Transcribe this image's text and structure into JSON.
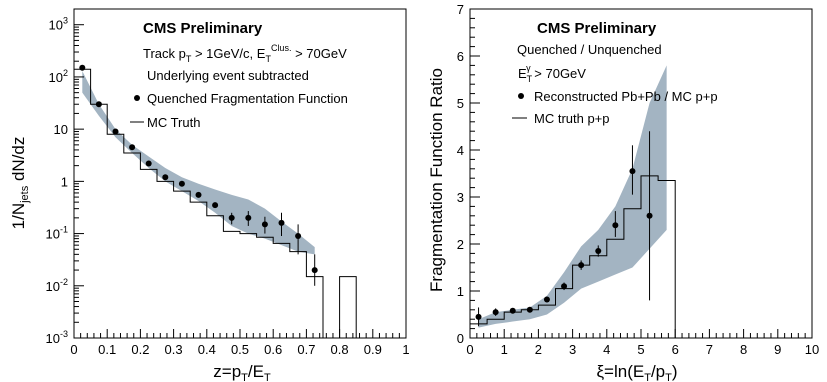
{
  "chart_data": [
    {
      "type": "line",
      "title": "CMS Preliminary",
      "xlabel": "z=p_T/E_T",
      "ylabel": "1/N_jets dN/dz",
      "yscale": "log",
      "xlim": [
        0,
        1
      ],
      "ylim": [
        0.001,
        2000
      ],
      "xticks": [
        "0",
        "0.1",
        "0.2",
        "0.3",
        "0.4",
        "0.5",
        "0.6",
        "0.7",
        "0.8",
        "0.9",
        "1"
      ],
      "yticks": [
        {
          "value": 0.001,
          "base": "10",
          "exp": "-3"
        },
        {
          "value": 0.01,
          "base": "10",
          "exp": "-2"
        },
        {
          "value": 0.1,
          "base": "10",
          "exp": "-1"
        },
        {
          "value": 1,
          "base": "1",
          "exp": ""
        },
        {
          "value": 10,
          "base": "10",
          "exp": ""
        },
        {
          "value": 100,
          "base": "10",
          "exp": "2"
        },
        {
          "value": 1000,
          "base": "10",
          "exp": "3"
        }
      ],
      "annotations": {
        "track_pre": "Track p",
        "track_sub": "T",
        "track_mid": " > 1GeV/c, E",
        "track_sub2": "T",
        "track_sup": "Clus.",
        "track_post": " > 70GeV",
        "line2": "Underlying event subtracted"
      },
      "legend": [
        {
          "marker": "circle",
          "label": "Quenched Fragmentation Function"
        },
        {
          "marker": "line",
          "label": "MC Truth"
        }
      ],
      "series": [
        {
          "name": "Quenched Fragmentation Function",
          "kind": "points",
          "x": [
            0.025,
            0.075,
            0.125,
            0.175,
            0.225,
            0.275,
            0.325,
            0.375,
            0.425,
            0.475,
            0.525,
            0.575,
            0.625,
            0.675,
            0.725
          ],
          "y": [
            150,
            30,
            9,
            4.5,
            2.2,
            1.2,
            0.9,
            0.55,
            0.35,
            0.2,
            0.2,
            0.15,
            0.16,
            0.09,
            0.02
          ],
          "yerr_low": [
            0,
            0,
            0,
            0,
            0,
            0,
            0,
            0,
            0,
            0.05,
            0.06,
            0.05,
            0.07,
            0.05,
            0.01
          ],
          "yerr_high": [
            0,
            0,
            0,
            0,
            0,
            0,
            0,
            0,
            0,
            0.05,
            0.07,
            0.06,
            0.09,
            0.06,
            0.02
          ]
        },
        {
          "name": "MC Truth",
          "kind": "histogram",
          "edges": [
            0,
            0.05,
            0.1,
            0.15,
            0.2,
            0.25,
            0.3,
            0.35,
            0.4,
            0.45,
            0.5,
            0.55,
            0.6,
            0.65,
            0.7,
            0.75,
            0.8,
            0.85
          ],
          "values": [
            140,
            30,
            8,
            3.5,
            1.7,
            1,
            0.65,
            0.4,
            0.22,
            0.11,
            0.1,
            0.085,
            0.065,
            0.045,
            0.015,
            0.001,
            0.015
          ]
        },
        {
          "name": "band",
          "kind": "band",
          "x": [
            0.025,
            0.075,
            0.125,
            0.175,
            0.225,
            0.275,
            0.325,
            0.375,
            0.425,
            0.475,
            0.525,
            0.575,
            0.625,
            0.675,
            0.725
          ],
          "low": [
            50,
            18,
            7,
            3.5,
            1.8,
            1.0,
            0.65,
            0.42,
            0.25,
            0.14,
            0.1,
            0.08,
            0.06,
            0.045,
            0.04
          ],
          "high": [
            130,
            30,
            10,
            5,
            3.0,
            1.8,
            1.2,
            0.9,
            0.7,
            0.55,
            0.45,
            0.3,
            0.17,
            0.1,
            0.055
          ]
        }
      ]
    },
    {
      "type": "line",
      "title": "CMS Preliminary",
      "xlabel": "ξ=ln(E_T/p_T)",
      "ylabel": "Fragmentation Function Ratio",
      "xlim": [
        0,
        10
      ],
      "ylim": [
        0,
        7
      ],
      "xticks": [
        "0",
        "1",
        "2",
        "3",
        "4",
        "5",
        "6",
        "7",
        "8",
        "9",
        "10"
      ],
      "yticks": [
        "0",
        "1",
        "2",
        "3",
        "4",
        "5",
        "6",
        "7"
      ],
      "annotations": {
        "line1": "Quenched / Unquenched",
        "et_pre": "E",
        "et_sub": "T",
        "et_sup": "γ",
        "et_post": " > 70GeV"
      },
      "legend": [
        {
          "marker": "circle",
          "label": "Reconstructed Pb+Pb / MC p+p"
        },
        {
          "marker": "line",
          "label": "MC truth p+p"
        }
      ],
      "series": [
        {
          "name": "Reconstructed Pb+Pb / MC p+p",
          "kind": "points",
          "x": [
            0.25,
            0.75,
            1.25,
            1.75,
            2.25,
            2.75,
            3.25,
            3.75,
            4.25,
            4.75,
            5.25
          ],
          "y": [
            0.45,
            0.55,
            0.58,
            0.6,
            0.82,
            1.1,
            1.55,
            1.85,
            2.4,
            3.55,
            2.6
          ],
          "yerr_low": [
            0.2,
            0.08,
            0.05,
            0.05,
            0.06,
            0.08,
            0.1,
            0.12,
            0.25,
            0.5,
            1.8
          ],
          "yerr_high": [
            0.2,
            0.08,
            0.05,
            0.05,
            0.06,
            0.08,
            0.1,
            0.12,
            0.3,
            0.55,
            1.8
          ]
        },
        {
          "name": "MC truth p+p",
          "kind": "histogram",
          "edges": [
            0,
            0.5,
            1,
            1.5,
            2,
            2.5,
            3,
            3.5,
            4,
            4.5,
            5,
            5.5,
            6
          ],
          "values": [
            0.3,
            0.4,
            0.55,
            0.6,
            0.7,
            1.05,
            1.55,
            1.75,
            2.1,
            2.75,
            3.45,
            3.35
          ]
        },
        {
          "name": "band",
          "kind": "band",
          "x": [
            0.25,
            0.75,
            1.25,
            1.75,
            2.25,
            2.75,
            3.25,
            3.75,
            4.25,
            4.75,
            5.25,
            5.75
          ],
          "low": [
            0.22,
            0.3,
            0.35,
            0.4,
            0.5,
            0.75,
            1.05,
            1.2,
            1.35,
            1.5,
            1.9,
            2.3
          ],
          "high": [
            0.4,
            0.55,
            0.6,
            0.65,
            0.9,
            1.4,
            1.95,
            2.3,
            2.8,
            3.6,
            5.0,
            5.8
          ]
        }
      ]
    }
  ],
  "colors": {
    "band": "#a3b4c2",
    "axis": "#000000",
    "marker": "#000000"
  }
}
